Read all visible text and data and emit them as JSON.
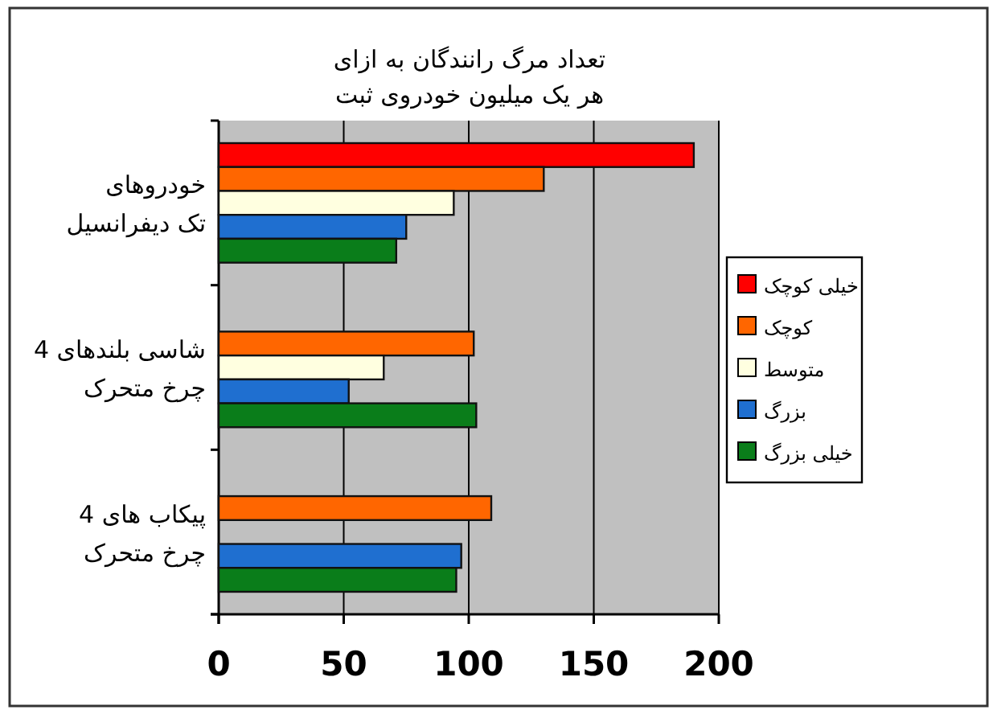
{
  "chart_data": {
    "type": "bar",
    "orientation": "horizontal",
    "title": "تعداد مرگ رانندگان به ازای\nهر یک میلیون خودروی ثبت",
    "categories": [
      "خودروهای\nتک دیفرانسیل",
      "شاسی بلندهای 4\nچرخ متحرک",
      "پیکاب های 4\nچرخ متحرک"
    ],
    "series": [
      {
        "name": "خیلی کوچک",
        "color": "#ff0000",
        "values": [
          190,
          null,
          null
        ]
      },
      {
        "name": "کوچک",
        "color": "#ff6600",
        "values": [
          130,
          102,
          109
        ]
      },
      {
        "name": "متوسط",
        "color": "#ffffe0",
        "values": [
          94,
          66,
          null
        ]
      },
      {
        "name": "بزرگ",
        "color": "#1f6fd0",
        "values": [
          75,
          52,
          97
        ]
      },
      {
        "name": "خیلی بزرگ",
        "color": "#0a7d1a",
        "values": [
          71,
          103,
          95
        ]
      }
    ],
    "xlim": [
      0,
      200
    ],
    "xticks": [
      0,
      50,
      100,
      150,
      200
    ],
    "grid": "x",
    "legend": "right"
  }
}
